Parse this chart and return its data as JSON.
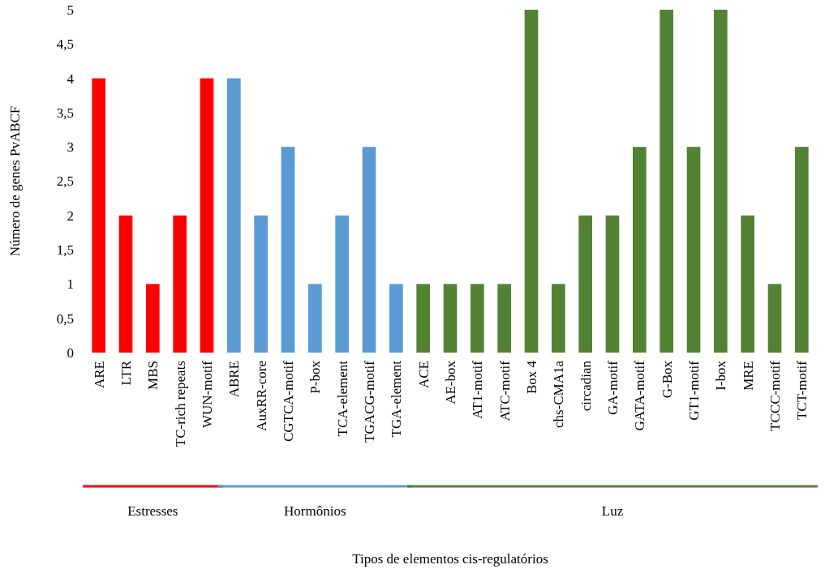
{
  "chart_data": {
    "type": "bar",
    "ylabel": "Número de genes PvABCF",
    "annotations": [
      "Estresses",
      "Hormônios",
      "Luz",
      "Tipos de elementos cis-regulatórios"
    ],
    "categories": [
      "ARE",
      "LTR",
      "MBS",
      "TC-rich repeats",
      "WUN-motif",
      "ABRE",
      "AuxRR-core",
      "CGTCA-motif",
      "P-box",
      "TCA-element",
      "TGACG-motif",
      "TGA-element",
      "ACE",
      "AE-box",
      "AT1-motif",
      "ATC-motif",
      "Box 4",
      "chs-CMA1a",
      "circadian",
      "GA-motif",
      "GATA-motif",
      "G-Box",
      "GT1-motif",
      "I-box",
      "MRE",
      "TCCC-motif",
      "TCT-motif"
    ],
    "values": [
      4,
      2,
      1,
      2,
      4,
      4,
      2,
      3,
      1,
      2,
      3,
      1,
      1,
      1,
      1,
      1,
      5,
      1,
      2,
      2,
      3,
      5,
      3,
      5,
      2,
      1,
      3
    ],
    "colors": [
      "#ff0000",
      "#ff0000",
      "#ff0000",
      "#ff0000",
      "#ff0000",
      "#5b9bd5",
      "#5b9bd5",
      "#5b9bd5",
      "#5b9bd5",
      "#5b9bd5",
      "#5b9bd5",
      "#5b9bd5",
      "#548235",
      "#548235",
      "#548235",
      "#548235",
      "#548235",
      "#548235",
      "#548235",
      "#548235",
      "#548235",
      "#548235",
      "#548235",
      "#548235",
      "#548235",
      "#548235",
      "#548235"
    ],
    "ylim": [
      0,
      5
    ],
    "yticks": [
      0,
      {
        "value": 0.5,
        "label": "0,5"
      },
      1,
      {
        "value": 1.5,
        "label": "1,5"
      },
      2,
      {
        "value": 2.5,
        "label": "2,5"
      },
      3,
      {
        "value": 3.5,
        "label": "3,5"
      },
      4,
      {
        "value": 4.5,
        "label": "4,5"
      },
      5
    ]
  }
}
